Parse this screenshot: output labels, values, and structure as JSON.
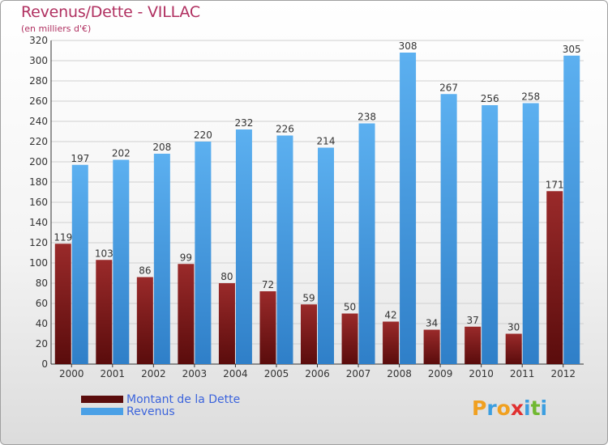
{
  "title": "Revenus/Dette - VILLAC",
  "subtitle": "(en milliers d'€)",
  "legend": {
    "debt_label": "Montant de la Dette",
    "revenue_label": "Revenus"
  },
  "logo": {
    "text": "Proxiti",
    "letters": [
      "P",
      "r",
      "o",
      "x",
      "i",
      "t",
      "i"
    ]
  },
  "colors": {
    "debt": "#7a1515",
    "revenue": "#4aa0e6",
    "title": "#b03060",
    "legend_text": "#3c64dc"
  },
  "chart_data": {
    "type": "bar",
    "title": "Revenus/Dette - VILLAC",
    "subtitle": "(en milliers d'€)",
    "categories": [
      "2000",
      "2001",
      "2002",
      "2003",
      "2004",
      "2005",
      "2006",
      "2007",
      "2008",
      "2009",
      "2010",
      "2011",
      "2012"
    ],
    "series": [
      {
        "name": "Montant de la Dette",
        "values": [
          119,
          103,
          86,
          99,
          80,
          72,
          59,
          50,
          42,
          34,
          37,
          30,
          171
        ]
      },
      {
        "name": "Revenus",
        "values": [
          197,
          202,
          208,
          220,
          232,
          226,
          214,
          238,
          308,
          267,
          256,
          258,
          305
        ]
      }
    ],
    "ylim": [
      0,
      320
    ],
    "yticks": [
      0,
      20,
      40,
      60,
      80,
      100,
      120,
      140,
      160,
      180,
      200,
      220,
      240,
      260,
      280,
      300,
      320
    ],
    "grid": true,
    "legend_position": "bottom-left"
  }
}
